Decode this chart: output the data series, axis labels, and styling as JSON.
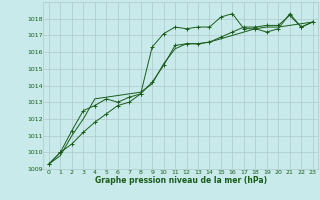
{
  "bg_color": "#c8eaea",
  "grid_color": "#b0c8c8",
  "line_color": "#1a5c1a",
  "title": "Graphe pression niveau de la mer (hPa)",
  "xlim": [
    -0.5,
    23.5
  ],
  "ylim": [
    1009,
    1019
  ],
  "xticks": [
    0,
    1,
    2,
    3,
    4,
    5,
    6,
    7,
    8,
    9,
    10,
    11,
    12,
    13,
    14,
    15,
    16,
    17,
    18,
    19,
    20,
    21,
    22,
    23
  ],
  "yticks": [
    1009,
    1010,
    1011,
    1012,
    1013,
    1014,
    1015,
    1016,
    1017,
    1018
  ],
  "line1_x": [
    0,
    1,
    2,
    3,
    4,
    5,
    6,
    7,
    8,
    9,
    10,
    11,
    12,
    13,
    14,
    15,
    16,
    17,
    18,
    19,
    20,
    21,
    22,
    23
  ],
  "line1_y": [
    1009.3,
    1010.0,
    1010.5,
    1011.2,
    1011.8,
    1012.3,
    1012.8,
    1013.0,
    1013.5,
    1016.3,
    1017.1,
    1017.5,
    1017.4,
    1017.5,
    1017.5,
    1018.1,
    1018.3,
    1017.4,
    1017.4,
    1017.2,
    1017.4,
    1018.3,
    1017.5,
    1017.8
  ],
  "line2_x": [
    0,
    1,
    2,
    3,
    4,
    5,
    6,
    7,
    8,
    9,
    10,
    11,
    12,
    13,
    14,
    15,
    16,
    17,
    18,
    19,
    20,
    21,
    22,
    23
  ],
  "line2_y": [
    1009.3,
    1010.0,
    1011.3,
    1012.5,
    1012.8,
    1013.2,
    1013.0,
    1013.3,
    1013.5,
    1014.2,
    1015.2,
    1016.4,
    1016.5,
    1016.5,
    1016.6,
    1016.9,
    1017.2,
    1017.5,
    1017.5,
    1017.6,
    1017.6,
    1018.2,
    1017.5,
    1017.8
  ],
  "line3_x": [
    0,
    1,
    2,
    3,
    4,
    5,
    6,
    7,
    8,
    9,
    10,
    11,
    12,
    13,
    14,
    15,
    16,
    17,
    18,
    19,
    20,
    21,
    22,
    23
  ],
  "line3_y": [
    1009.3,
    1009.8,
    1011.0,
    1012.0,
    1013.2,
    1013.3,
    1013.4,
    1013.5,
    1013.6,
    1014.1,
    1015.3,
    1016.2,
    1016.5,
    1016.5,
    1016.6,
    1016.8,
    1017.0,
    1017.2,
    1017.4,
    1017.5,
    1017.5,
    1017.6,
    1017.7,
    1017.8
  ]
}
